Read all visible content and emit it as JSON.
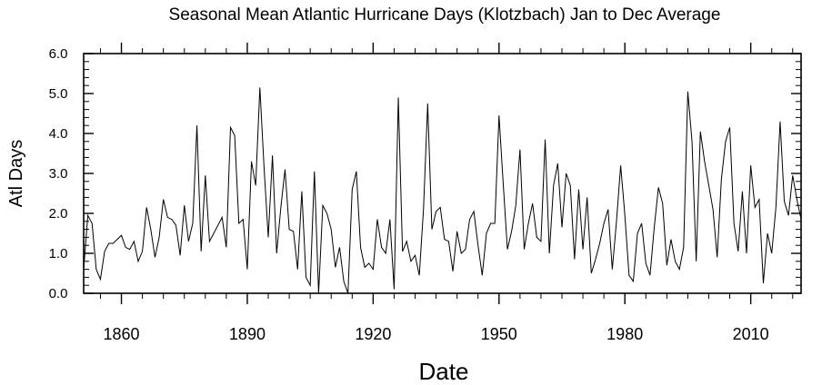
{
  "chart_data": {
    "type": "line",
    "title": "Seasonal Mean Atlantic Hurricane Days (Klotzbach) Jan to Dec Average",
    "xlabel": "Date",
    "ylabel": "Atl Days",
    "xlim": [
      1851,
      2022
    ],
    "ylim": [
      0,
      6
    ],
    "xticks": [
      1860,
      1890,
      1920,
      1950,
      1980,
      2010
    ],
    "xtick_labels": [
      "1860",
      "1890",
      "1920",
      "1950",
      "1980",
      "2010"
    ],
    "yticks": [
      0,
      1,
      2,
      3,
      4,
      5,
      6
    ],
    "ytick_labels": [
      "0.0",
      "1.0",
      "2.0",
      "3.0",
      "4.0",
      "5.0",
      "6.0"
    ],
    "grid": false,
    "series": [
      {
        "color": "#000000",
        "x": [
          1851,
          1852,
          1853,
          1854,
          1855,
          1856,
          1857,
          1858,
          1859,
          1860,
          1861,
          1862,
          1863,
          1864,
          1865,
          1866,
          1867,
          1868,
          1869,
          1870,
          1871,
          1872,
          1873,
          1874,
          1875,
          1876,
          1877,
          1878,
          1879,
          1880,
          1881,
          1882,
          1883,
          1884,
          1885,
          1886,
          1887,
          1888,
          1889,
          1890,
          1891,
          1892,
          1893,
          1894,
          1895,
          1896,
          1897,
          1898,
          1899,
          1900,
          1901,
          1902,
          1903,
          1904,
          1905,
          1906,
          1907,
          1908,
          1909,
          1910,
          1911,
          1912,
          1913,
          1914,
          1915,
          1916,
          1917,
          1918,
          1919,
          1920,
          1921,
          1922,
          1923,
          1924,
          1925,
          1926,
          1927,
          1928,
          1929,
          1930,
          1931,
          1932,
          1933,
          1934,
          1935,
          1936,
          1937,
          1938,
          1939,
          1940,
          1941,
          1942,
          1943,
          1944,
          1945,
          1946,
          1947,
          1948,
          1949,
          1950,
          1951,
          1952,
          1953,
          1954,
          1955,
          1956,
          1957,
          1958,
          1959,
          1960,
          1961,
          1962,
          1963,
          1964,
          1965,
          1966,
          1967,
          1968,
          1969,
          1970,
          1971,
          1972,
          1973,
          1974,
          1975,
          1976,
          1977,
          1978,
          1979,
          1980,
          1981,
          1982,
          1983,
          1984,
          1985,
          1986,
          1987,
          1988,
          1989,
          1990,
          1991,
          1992,
          1993,
          1994,
          1995,
          1996,
          1997,
          1998,
          1999,
          2000,
          2001,
          2002,
          2003,
          2004,
          2005,
          2006,
          2007,
          2008,
          2009,
          2010,
          2011,
          2012,
          2013,
          2014,
          2015,
          2016,
          2017,
          2018,
          2019,
          2020,
          2021,
          2022
        ],
        "y": [
          0.6,
          1.95,
          1.75,
          0.6,
          0.35,
          1.05,
          1.25,
          1.25,
          1.35,
          1.45,
          1.15,
          1.1,
          1.3,
          0.8,
          1.05,
          2.15,
          1.6,
          0.9,
          1.4,
          2.35,
          1.9,
          1.85,
          1.7,
          0.95,
          2.2,
          1.3,
          1.75,
          4.2,
          1.05,
          2.95,
          1.3,
          1.5,
          1.7,
          1.9,
          1.15,
          4.15,
          3.95,
          1.75,
          1.85,
          0.6,
          3.3,
          2.7,
          5.15,
          3.15,
          1.4,
          3.45,
          1.0,
          2.15,
          3.1,
          1.6,
          1.55,
          0.6,
          2.55,
          0.4,
          0.2,
          3.05,
          0.0,
          2.2,
          2.0,
          1.6,
          0.65,
          1.15,
          0.3,
          0.0,
          2.6,
          3.05,
          1.15,
          0.65,
          0.75,
          0.6,
          1.85,
          1.15,
          1.0,
          1.85,
          0.1,
          4.9,
          1.05,
          1.3,
          0.8,
          0.95,
          0.45,
          2.1,
          4.75,
          1.6,
          2.05,
          2.15,
          1.35,
          1.3,
          0.55,
          1.55,
          1.0,
          1.1,
          1.85,
          2.05,
          1.2,
          0.45,
          1.5,
          1.75,
          1.75,
          4.45,
          2.75,
          1.1,
          1.55,
          2.2,
          3.6,
          1.1,
          1.75,
          2.25,
          1.4,
          1.3,
          3.85,
          1.0,
          2.7,
          3.25,
          1.65,
          3.0,
          2.7,
          0.85,
          2.6,
          1.1,
          2.4,
          0.5,
          0.85,
          1.25,
          1.75,
          2.1,
          0.6,
          1.8,
          3.2,
          1.95,
          0.45,
          0.3,
          1.5,
          1.75,
          0.75,
          0.45,
          1.65,
          2.65,
          2.25,
          0.7,
          1.35,
          0.8,
          0.6,
          1.15,
          5.05,
          3.8,
          0.8,
          4.05,
          3.3,
          2.7,
          2.1,
          0.9,
          2.85,
          3.8,
          4.15,
          1.75,
          1.05,
          2.55,
          1.0,
          3.2,
          2.15,
          2.35,
          0.25,
          1.5,
          1.0,
          2.15,
          4.3,
          2.3,
          1.95,
          2.95,
          2.35,
          1.85
        ]
      }
    ]
  }
}
